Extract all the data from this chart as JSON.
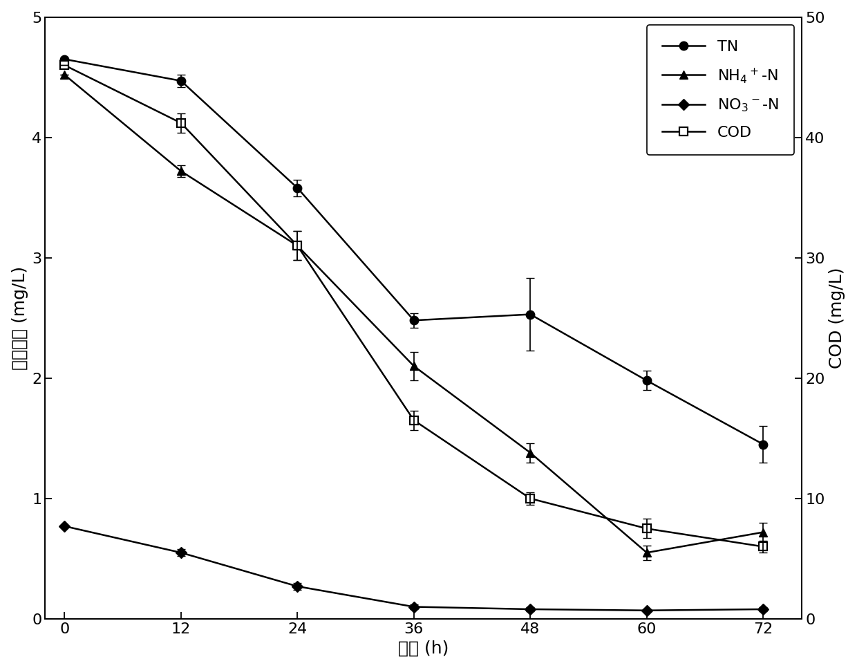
{
  "x": [
    0,
    12,
    24,
    36,
    48,
    60,
    72
  ],
  "TN": [
    4.65,
    4.47,
    3.58,
    2.48,
    2.53,
    1.98,
    1.45
  ],
  "TN_err": [
    0.0,
    0.05,
    0.07,
    0.06,
    0.3,
    0.08,
    0.15
  ],
  "NH4": [
    4.52,
    3.72,
    3.1,
    2.1,
    1.38,
    0.55,
    0.72
  ],
  "NH4_err": [
    0.0,
    0.05,
    0.12,
    0.12,
    0.08,
    0.06,
    0.08
  ],
  "NO3": [
    0.77,
    0.55,
    0.27,
    0.1,
    0.08,
    0.07,
    0.08
  ],
  "NO3_err": [
    0.0,
    0.03,
    0.03,
    0.02,
    0.02,
    0.01,
    0.02
  ],
  "COD": [
    46.0,
    41.2,
    31.0,
    16.5,
    10.0,
    7.5,
    6.0
  ],
  "COD_err": [
    0.0,
    0.8,
    1.2,
    0.8,
    0.5,
    0.8,
    0.5
  ],
  "ylim_left": [
    0,
    5
  ],
  "ylim_right": [
    0,
    50
  ],
  "yticks_left": [
    0,
    1,
    2,
    3,
    4,
    5
  ],
  "yticks_right": [
    0,
    10,
    20,
    30,
    40,
    50
  ],
  "xlabel": "时间 (h)",
  "ylabel_left": "氮类浓度 (mg/L)",
  "ylabel_right": "COD (mg/L)",
  "xticks": [
    0,
    12,
    24,
    36,
    48,
    60,
    72
  ],
  "line_color": "#000000",
  "markersize": 9,
  "linewidth": 1.8,
  "fontsize": 16,
  "label_fontsize": 18,
  "tick_fontsize": 16,
  "capsize": 4
}
